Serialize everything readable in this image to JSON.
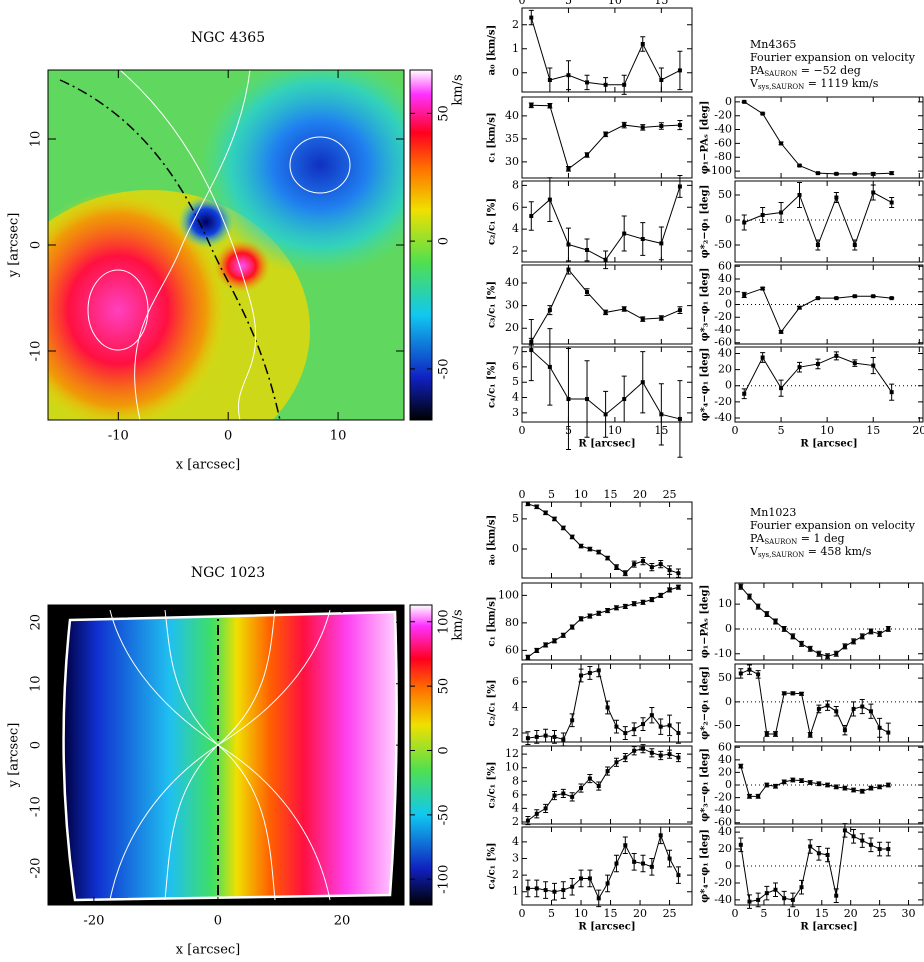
{
  "info": [
    {
      "name": "Mn4365",
      "subtitle": "Fourier expansion on velocity",
      "pa": {
        "label": "PA",
        "sub": "SAURON",
        "text": " = −52 deg"
      },
      "vsys": {
        "label": "V",
        "sub": "sys,SAURON",
        "text": " = 1119 km/s"
      }
    },
    {
      "name": "Mn1023",
      "subtitle": "Fourier expansion on velocity",
      "pa": {
        "label": "PA",
        "sub": "SAURON",
        "text": " = 1 deg"
      },
      "vsys": {
        "label": "V",
        "sub": "sys,SAURON",
        "text": " = 458 km/s"
      }
    }
  ],
  "chart_data": [
    {
      "type": "velocity_map",
      "title": "NGC 4365",
      "xlabel": "x [arcsec]",
      "ylabel": "y [arcsec]",
      "xlim": [
        -16.4,
        16
      ],
      "ylim": [
        -16.5,
        16.5
      ],
      "xticks": [
        -10,
        0,
        10
      ],
      "yticks": [
        -10,
        0,
        10
      ],
      "colorbar": {
        "label": "km/s",
        "clim": [
          -70,
          67
        ],
        "ticks": [
          -50,
          0,
          50
        ]
      }
    },
    {
      "type": "errorline",
      "ylabel": "a₀ [km/s]",
      "xtick_labels": "top",
      "x": [
        1,
        3,
        5,
        7,
        9,
        11,
        13,
        15,
        17
      ],
      "values": [
        2.3,
        -0.3,
        -0.1,
        -0.4,
        -0.5,
        -0.5,
        1.2,
        -0.3,
        0.1
      ],
      "errors": [
        0.3,
        0.5,
        0.6,
        0.3,
        0.3,
        0.4,
        0.3,
        0.5,
        0.8
      ],
      "xlim": [
        0,
        18.3
      ],
      "ylim": [
        -0.8,
        2.7
      ],
      "xticks": [
        0,
        5,
        10,
        15
      ],
      "yticks": [
        0,
        1,
        2
      ]
    },
    {
      "type": "errorline",
      "ylabel": "c₁ [km/s]",
      "xtick_labels": "none",
      "x": [
        1,
        3,
        5,
        7,
        9,
        11,
        13,
        15,
        17
      ],
      "values": [
        42.3,
        42.2,
        28.5,
        31.5,
        36,
        38,
        37.5,
        37.8,
        38
      ],
      "errors": [
        0.5,
        0.5,
        0.5,
        0.5,
        0.5,
        0.6,
        0.6,
        0.7,
        1.0
      ],
      "xlim": [
        0,
        18.3
      ],
      "ylim": [
        26.5,
        44.1
      ],
      "xticks": [
        0,
        5,
        10,
        15
      ],
      "yticks": [
        30,
        35,
        40
      ]
    },
    {
      "type": "errorline",
      "ylabel": "c₂/c₁ [%]",
      "xtick_labels": "none",
      "x": [
        1,
        3,
        5,
        7,
        9,
        11,
        13,
        15,
        17
      ],
      "values": [
        5.2,
        6.7,
        2.6,
        2.1,
        1.2,
        3.6,
        3.1,
        2.7,
        7.9
      ],
      "errors": [
        1.3,
        2.0,
        1.5,
        1.0,
        0.8,
        1.6,
        1.5,
        1.5,
        1.0
      ],
      "xlim": [
        0,
        18.3
      ],
      "ylim": [
        1,
        8.4
      ],
      "xticks": [
        0,
        5,
        10,
        15
      ],
      "yticks": [
        2,
        4,
        6,
        8
      ]
    },
    {
      "type": "errorline",
      "ylabel": "c₃/c₁ [%]",
      "xtick_labels": "none",
      "x": [
        1,
        3,
        5,
        7,
        9,
        11,
        13,
        15,
        17
      ],
      "values": [
        14,
        28,
        46,
        36,
        27,
        28.5,
        24,
        24.5,
        28
      ],
      "errors": [
        1.5,
        2,
        2,
        1.5,
        1,
        1,
        1,
        1,
        1.5
      ],
      "xlim": [
        0,
        18.3
      ],
      "ylim": [
        13,
        48
      ],
      "xticks": [
        0,
        5,
        10,
        15
      ],
      "yticks": [
        20,
        30,
        40
      ]
    },
    {
      "type": "errorline",
      "ylabel": "c₄/c₁ [%]",
      "xtick_labels": "bottom",
      "xlabel": "R [arcsec]",
      "x": [
        1,
        3,
        5,
        7,
        9,
        11,
        13,
        15,
        17
      ],
      "values": [
        7.1,
        6.0,
        3.9,
        3.9,
        2.9,
        3.9,
        5.0,
        2.9,
        2.6
      ],
      "errors": [
        2,
        2.5,
        3.3,
        2.5,
        1.5,
        1.5,
        2,
        2,
        2.5
      ],
      "xlim": [
        0,
        18.3
      ],
      "ylim": [
        2.4,
        7.3
      ],
      "xticks": [
        0,
        5,
        10,
        15
      ],
      "yticks": [
        3,
        4,
        5,
        6,
        7
      ]
    },
    {
      "type": "errorline",
      "ylabel": "φ₁−PAₛ [deg]",
      "xtick_labels": "none",
      "x": [
        1,
        3,
        5,
        7,
        9,
        11,
        13,
        15,
        17
      ],
      "values": [
        0,
        -17,
        -60,
        -92,
        -103,
        -104,
        -104,
        -104,
        -103
      ],
      "errors": [
        1,
        1,
        2,
        1,
        1,
        1,
        1,
        2,
        2
      ],
      "xlim": [
        0,
        20.4
      ],
      "ylim": [
        -110,
        7
      ],
      "xticks": [
        0,
        5,
        10,
        15,
        20
      ],
      "yticks": [
        -100,
        -80,
        -60,
        -40,
        -20,
        0
      ]
    },
    {
      "type": "errorline",
      "ylabel": "φ*₂−φ₁ [deg]",
      "xtick_labels": "none",
      "zero_line": true,
      "x": [
        1,
        3,
        5,
        7,
        9,
        11,
        13,
        15,
        17
      ],
      "values": [
        -5,
        10,
        15,
        50,
        -50,
        45,
        -50,
        55,
        35
      ],
      "errors": [
        15,
        15,
        20,
        25,
        10,
        10,
        10,
        15,
        10
      ],
      "xlim": [
        0,
        20.4
      ],
      "ylim": [
        -84,
        78
      ],
      "xticks": [
        0,
        5,
        10,
        15,
        20
      ],
      "yticks": [
        -50,
        0,
        50
      ]
    },
    {
      "type": "errorline",
      "ylabel": "φ*₃−φ₁ [deg]",
      "xtick_labels": "none",
      "zero_line": true,
      "x": [
        1,
        3,
        5,
        7,
        9,
        11,
        13,
        15,
        17
      ],
      "values": [
        15,
        25,
        -43,
        -5,
        10,
        10,
        13,
        13,
        10
      ],
      "errors": [
        4,
        2,
        2,
        2,
        1,
        1,
        1,
        1,
        1
      ],
      "xlim": [
        0,
        20.4
      ],
      "ylim": [
        -62,
        62
      ],
      "xticks": [
        0,
        5,
        10,
        15,
        20
      ],
      "yticks": [
        -60,
        -40,
        -20,
        0,
        20,
        40,
        60
      ]
    },
    {
      "type": "errorline",
      "ylabel": "φ*₄−φ₁ [deg]",
      "xtick_labels": "bottom",
      "xlabel": "R [arcsec]",
      "zero_line": true,
      "x": [
        1,
        3,
        5,
        7,
        9,
        11,
        13,
        15,
        17
      ],
      "values": [
        -10,
        35,
        -3,
        23,
        27,
        37,
        28,
        25,
        -8
      ],
      "errors": [
        6,
        6,
        10,
        6,
        6,
        5,
        4,
        10,
        10
      ],
      "xlim": [
        0,
        20.4
      ],
      "ylim": [
        -45,
        48
      ],
      "xticks": [
        0,
        5,
        10,
        15,
        20
      ],
      "yticks": [
        -40,
        -20,
        0,
        20,
        40
      ]
    },
    {
      "type": "velocity_map",
      "title": "NGC 1023",
      "xlabel": "x [arcsec]",
      "ylabel": "y [arcsec]",
      "xlim": [
        -27.4,
        30
      ],
      "ylim": [
        -26,
        22.8
      ],
      "xticks": [
        -20,
        0,
        20
      ],
      "yticks": [
        -20,
        -10,
        0,
        10,
        20
      ],
      "colorbar": {
        "label": "km/s",
        "clim": [
          -120,
          113
        ],
        "ticks": [
          -100,
          -50,
          0,
          50,
          100
        ]
      }
    },
    {
      "type": "errorline",
      "ylabel": "a₀ [km/s]",
      "xtick_labels": "top",
      "x": [
        1,
        2.5,
        4,
        5.5,
        7,
        8.5,
        10,
        11.5,
        13,
        14.5,
        16,
        17.5,
        19,
        20.5,
        22,
        23.5,
        25,
        26.5
      ],
      "values": [
        7.5,
        7,
        6,
        5,
        3.5,
        2,
        0.5,
        0,
        -0.5,
        -1.5,
        -3,
        -4,
        -2.5,
        -2,
        -3,
        -2.5,
        -3.5,
        -4
      ],
      "errors": [
        0.3,
        0.3,
        0.3,
        0.3,
        0.3,
        0.3,
        0.3,
        0.3,
        0.3,
        0.3,
        0.4,
        0.4,
        0.5,
        0.6,
        0.6,
        0.6,
        0.7,
        0.7
      ],
      "xlim": [
        0,
        28.8
      ],
      "ylim": [
        -4.8,
        7.8
      ],
      "xticks": [
        0,
        5,
        10,
        15,
        20,
        25
      ],
      "yticks": [
        0,
        5
      ]
    },
    {
      "type": "errorline",
      "ylabel": "c₁ [km/s]",
      "xtick_labels": "none",
      "x": [
        1,
        2.5,
        4,
        5.5,
        7,
        8.5,
        10,
        11.5,
        13,
        14.5,
        16,
        17.5,
        19,
        20.5,
        22,
        23.5,
        25,
        26.5
      ],
      "values": [
        55,
        60,
        64,
        67,
        71,
        77,
        83,
        85,
        87,
        89,
        91,
        92,
        94,
        95,
        97,
        100,
        104,
        106
      ],
      "errors": [
        1.5,
        1.5,
        1.5,
        1.5,
        1.5,
        1.5,
        1.5,
        1.5,
        1.5,
        1.5,
        1.5,
        1.5,
        1.5,
        1.5,
        1.5,
        1.5,
        1.5,
        1.5
      ],
      "xlim": [
        0,
        28.8
      ],
      "ylim": [
        53,
        109
      ],
      "xticks": [
        0,
        5,
        10,
        15,
        20,
        25
      ],
      "yticks": [
        60,
        80,
        100
      ]
    },
    {
      "type": "errorline",
      "ylabel": "c₂/c₁ [%]",
      "xtick_labels": "none",
      "x": [
        1,
        2.5,
        4,
        5.5,
        7,
        8.5,
        10,
        11.5,
        13,
        14.5,
        16,
        17.5,
        19,
        20.5,
        22,
        23.5,
        25,
        26.5
      ],
      "values": [
        1.6,
        1.7,
        1.8,
        1.7,
        1.5,
        3.0,
        6.5,
        6.7,
        6.9,
        4.0,
        2.5,
        2.0,
        2.3,
        2.7,
        3.4,
        2.5,
        2.6,
        2.0
      ],
      "errors": [
        0.5,
        0.5,
        0.5,
        0.5,
        0.5,
        0.5,
        0.5,
        0.5,
        0.5,
        0.5,
        0.5,
        0.5,
        0.5,
        0.5,
        0.6,
        0.6,
        0.8,
        0.8
      ],
      "xlim": [
        0,
        28.8
      ],
      "ylim": [
        1.3,
        7.4
      ],
      "xticks": [
        0,
        5,
        10,
        15,
        20,
        25
      ],
      "yticks": [
        2,
        4,
        6
      ]
    },
    {
      "type": "errorline",
      "ylabel": "c₃/c₁ [%]",
      "xtick_labels": "none",
      "x": [
        1,
        2.5,
        4,
        5.5,
        7,
        8.5,
        10,
        11.5,
        13,
        14.5,
        16,
        17.5,
        19,
        20.5,
        22,
        23.5,
        25,
        26.5
      ],
      "values": [
        2.2,
        3.2,
        4.0,
        5.9,
        6.2,
        5.7,
        7.0,
        8.4,
        7.3,
        9.5,
        10.8,
        11.5,
        12.5,
        12.8,
        12.2,
        11.8,
        12.0,
        11.5
      ],
      "errors": [
        0.6,
        0.6,
        0.6,
        0.6,
        0.6,
        0.6,
        0.6,
        0.6,
        0.6,
        0.6,
        0.6,
        0.6,
        0.6,
        0.6,
        0.6,
        0.6,
        0.6,
        0.6
      ],
      "xlim": [
        0,
        28.8
      ],
      "ylim": [
        1.7,
        13.2
      ],
      "xticks": [
        0,
        5,
        10,
        15,
        20,
        25
      ],
      "yticks": [
        2,
        4,
        6,
        8,
        10,
        12
      ]
    },
    {
      "type": "errorline",
      "ylabel": "c₄/c₁ [%]",
      "xtick_labels": "bottom",
      "xlabel": "R [arcsec]",
      "x": [
        1,
        2.5,
        4,
        5.5,
        7,
        8.5,
        10,
        11.5,
        13,
        14.5,
        16,
        17.5,
        19,
        20.5,
        22,
        23.5,
        25,
        26.5
      ],
      "values": [
        1.2,
        1.2,
        1.1,
        1.0,
        1.1,
        1.3,
        1.8,
        1.8,
        0.6,
        1.5,
        2.7,
        3.8,
        2.8,
        2.7,
        2.5,
        4.4,
        3.0,
        2.0
      ],
      "errors": [
        0.5,
        0.5,
        0.5,
        0.5,
        0.5,
        0.5,
        0.5,
        0.5,
        0.5,
        0.5,
        0.5,
        0.5,
        0.5,
        0.5,
        0.5,
        0.5,
        0.5,
        0.5
      ],
      "xlim": [
        0,
        28.8
      ],
      "ylim": [
        0.2,
        4.9
      ],
      "xticks": [
        0,
        5,
        10,
        15,
        20,
        25
      ],
      "yticks": [
        1,
        2,
        3,
        4
      ]
    },
    {
      "type": "errorline",
      "ylabel": "φ₁−PAₛ [deg]",
      "xtick_labels": "none",
      "zero_line": true,
      "x": [
        1,
        2.5,
        4,
        5.5,
        7,
        8.5,
        10,
        11.5,
        13,
        14.5,
        16,
        17.5,
        19,
        20.5,
        22,
        23.5,
        25,
        26.5
      ],
      "values": [
        17,
        13,
        9,
        6,
        3,
        0,
        -3,
        -6,
        -8,
        -10,
        -11,
        -10,
        -7,
        -5,
        -3,
        -1,
        -2,
        0
      ],
      "errors": [
        1,
        1,
        1,
        1,
        1,
        1,
        1,
        1,
        1,
        1,
        1,
        1,
        1,
        1,
        1,
        1,
        1,
        1
      ],
      "xlim": [
        0,
        32.5
      ],
      "ylim": [
        -12.5,
        18.5
      ],
      "xticks": [
        0,
        5,
        10,
        15,
        20,
        25,
        30
      ],
      "yticks": [
        -10,
        0,
        10
      ]
    },
    {
      "type": "errorline",
      "ylabel": "φ*₂−φ₁ [deg]",
      "xtick_labels": "none",
      "zero_line": true,
      "x": [
        1,
        2.5,
        4,
        5.5,
        7,
        8.5,
        10,
        11.5,
        13,
        14.5,
        16,
        17.5,
        19,
        20.5,
        22,
        23.5,
        25,
        26.5
      ],
      "values": [
        60,
        68,
        58,
        -68,
        -68,
        18,
        18,
        17,
        -70,
        -15,
        -8,
        -20,
        -60,
        -15,
        -10,
        -20,
        -55,
        -65
      ],
      "errors": [
        10,
        10,
        8,
        5,
        5,
        3,
        3,
        3,
        5,
        8,
        10,
        10,
        10,
        15,
        15,
        15,
        20,
        20
      ],
      "xlim": [
        0,
        32.5
      ],
      "ylim": [
        -85,
        80
      ],
      "xticks": [
        0,
        5,
        10,
        15,
        20,
        25,
        30
      ],
      "yticks": [
        -50,
        0,
        50
      ]
    },
    {
      "type": "errorline",
      "ylabel": "φ*₃−φ₁ [deg]",
      "xtick_labels": "none",
      "zero_line": true,
      "x": [
        1,
        2.5,
        4,
        5.5,
        7,
        8.5,
        10,
        11.5,
        13,
        14.5,
        16,
        17.5,
        19,
        20.5,
        22,
        23.5,
        25,
        26.5
      ],
      "values": [
        30,
        -18,
        -18,
        0,
        -2,
        5,
        8,
        7,
        4,
        2,
        0,
        -3,
        -5,
        -8,
        -10,
        -5,
        -3,
        0
      ],
      "errors": [
        3,
        3,
        3,
        3,
        3,
        3,
        3,
        3,
        3,
        3,
        3,
        3,
        3,
        3,
        3,
        3,
        3,
        3
      ],
      "xlim": [
        0,
        32.5
      ],
      "ylim": [
        -62,
        62
      ],
      "xticks": [
        0,
        5,
        10,
        15,
        20,
        25,
        30
      ],
      "yticks": [
        -60,
        -40,
        -20,
        0,
        20,
        40,
        60
      ]
    },
    {
      "type": "errorline",
      "ylabel": "φ*₄−φ₁ [deg]",
      "xtick_labels": "bottom",
      "xlabel": "R [arcsec]",
      "zero_line": true,
      "x": [
        1,
        2.5,
        4,
        5.5,
        7,
        8.5,
        10,
        11.5,
        13,
        14.5,
        16,
        17.5,
        19,
        20.5,
        22,
        23.5,
        25,
        26.5
      ],
      "values": [
        25,
        -42,
        -40,
        -32,
        -28,
        -38,
        -40,
        -25,
        23,
        15,
        13,
        -35,
        42,
        35,
        30,
        25,
        20,
        20
      ],
      "errors": [
        8,
        8,
        8,
        8,
        8,
        8,
        8,
        8,
        8,
        8,
        8,
        8,
        8,
        8,
        8,
        8,
        8,
        8
      ],
      "xlim": [
        0,
        32.5
      ],
      "ylim": [
        -46,
        46
      ],
      "xticks": [
        0,
        5,
        10,
        15,
        20,
        25,
        30
      ],
      "yticks": [
        -40,
        -20,
        0,
        20,
        40
      ]
    }
  ]
}
